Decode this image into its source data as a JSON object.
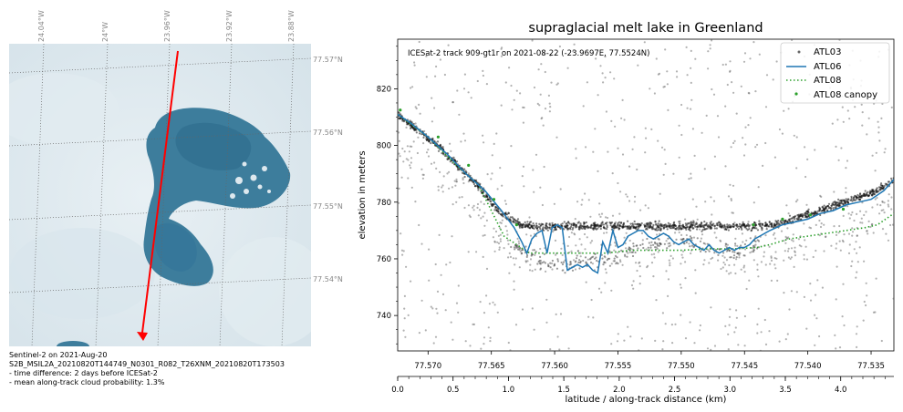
{
  "left_panel": {
    "lon_labels": [
      "24.04°W",
      "24°W",
      "23.96°W",
      "23.92°W",
      "23.88°W"
    ],
    "lat_labels": [
      "77.57°N",
      "77.56°N",
      "77.55°N",
      "77.54°N"
    ],
    "caption": [
      "Sentinel-2 on 2021-Aug-20",
      "S2B_MSIL2A_20210820T144749_N0301_R082_T26XNM_20210820T173503",
      "- time difference: 2 days before ICESat-2",
      "- mean along-track cloud probability: 1.3%"
    ],
    "colors": {
      "track": "#ff0000",
      "lake": "#3a7a9a",
      "ice": "#dfe9ef"
    }
  },
  "chart_data": {
    "type": "line",
    "title": "supraglacial melt lake in Greenland",
    "annotation": "ICESat-2 track 909-gt1r on 2021-08-22 (-23.9697E, 77.5524N)",
    "ylabel": "elevation in meters",
    "xlabel": "latitude / along-track distance (km)",
    "xlim": [
      77.5724,
      77.5332
    ],
    "ylim": [
      727.5,
      837.5
    ],
    "x_ticks": [
      "77.570",
      "77.565",
      "77.560",
      "77.555",
      "77.550",
      "77.545",
      "77.540",
      "77.535"
    ],
    "x_tick_values": [
      77.57,
      77.565,
      77.56,
      77.555,
      77.55,
      77.545,
      77.54,
      77.535
    ],
    "y_ticks": [
      "740",
      "760",
      "780",
      "800",
      "820"
    ],
    "y_tick_values": [
      740,
      760,
      780,
      800,
      820
    ],
    "dist_ticks": [
      "0.0",
      "0.5",
      "1.0",
      "1.5",
      "2.0",
      "2.5",
      "3.0",
      "3.5",
      "4.0"
    ],
    "dist_tick_values": [
      0.0,
      0.5,
      1.0,
      1.5,
      2.0,
      2.5,
      3.0,
      3.5,
      4.0
    ],
    "dist_xlim": [
      0.0,
      4.48
    ],
    "legend_position": "top-right",
    "series": [
      {
        "name": "ATL03",
        "kind": "points",
        "color": "#555555",
        "surface_x": [
          77.5724,
          77.571,
          77.569,
          77.567,
          77.5655,
          77.5645,
          77.5625,
          77.5605,
          77.5585,
          77.5565,
          77.5545,
          77.5525,
          77.5505,
          77.5485,
          77.5465,
          77.5445,
          77.5425,
          77.5405,
          77.5385,
          77.5365,
          77.5345,
          77.5332
        ],
        "surface_y": [
          811,
          806,
          799,
          790,
          783,
          777,
          771.5,
          771.5,
          771.5,
          771.5,
          771.5,
          771.5,
          771.5,
          771.5,
          771.5,
          771.5,
          772,
          775,
          778,
          781,
          784,
          788
        ],
        "bottom_x": [
          77.5635,
          77.5615,
          77.5595,
          77.5575,
          77.5555,
          77.5535,
          77.5515,
          77.5495,
          77.5475,
          77.5455,
          77.5438
        ],
        "bottom_y": [
          765,
          760,
          758,
          758.5,
          760,
          764,
          766,
          766,
          764,
          762,
          766
        ]
      },
      {
        "name": "ATL06",
        "kind": "line",
        "color": "#1f77b4",
        "x": [
          77.5724,
          77.5714,
          77.57,
          77.5685,
          77.567,
          77.5655,
          77.5642,
          77.5632,
          77.5626,
          77.5622,
          77.5618,
          77.5614,
          77.561,
          77.5606,
          77.5602,
          77.5598,
          77.5594,
          77.559,
          77.5586,
          77.5582,
          77.5578,
          77.5574,
          77.557,
          77.5566,
          77.5562,
          77.5558,
          77.5554,
          77.555,
          77.5546,
          77.5542,
          77.5538,
          77.5534,
          77.553,
          77.5526,
          77.5522,
          77.5518,
          77.5514,
          77.551,
          77.5506,
          77.5502,
          77.5498,
          77.5494,
          77.549,
          77.5486,
          77.5482,
          77.5478,
          77.5474,
          77.547,
          77.5466,
          77.5462,
          77.5458,
          77.5454,
          77.545,
          77.5446,
          77.5442,
          77.5438,
          77.543,
          77.542,
          77.541,
          77.54,
          77.539,
          77.538,
          77.537,
          77.536,
          77.535,
          77.534,
          77.5332
        ],
        "y": [
          811,
          808,
          803,
          797,
          790,
          784,
          777,
          771,
          766,
          762,
          767,
          769,
          770,
          762,
          771,
          772,
          771,
          756,
          757,
          758,
          757,
          758,
          756,
          755,
          766,
          762,
          770,
          764,
          765,
          768,
          769,
          770,
          770,
          768,
          767,
          768,
          769,
          768,
          766,
          765,
          766,
          767,
          765,
          764,
          763,
          765,
          763,
          762,
          763,
          764,
          763,
          764,
          764,
          765,
          767,
          768,
          770,
          772,
          773,
          774,
          776,
          777,
          779,
          780,
          781,
          784,
          788
        ]
      },
      {
        "name": "ATL08",
        "kind": "dotted",
        "color": "#2ca02c",
        "x": [
          77.5724,
          77.57,
          77.568,
          77.566,
          77.564,
          77.562,
          77.56,
          77.558,
          77.556,
          77.554,
          77.552,
          77.55,
          77.548,
          77.546,
          77.544,
          77.543,
          77.5415,
          77.54,
          77.5385,
          77.537,
          77.5355,
          77.5345,
          77.5332
        ],
        "y": [
          811,
          803,
          794,
          786,
          768,
          762,
          762,
          762,
          762,
          763,
          763,
          763,
          763.5,
          763.5,
          764,
          765,
          767,
          768,
          769,
          770,
          771,
          772,
          776
        ]
      },
      {
        "name": "ATL08 canopy",
        "kind": "points",
        "color": "#2ca02c",
        "x": [
          77.5722,
          77.5692,
          77.5668,
          77.5648,
          77.563,
          77.5443,
          77.542,
          77.5398,
          77.5372
        ],
        "y": [
          812.5,
          803,
          793,
          781,
          772,
          772,
          774,
          775.5,
          777.5
        ]
      }
    ]
  }
}
